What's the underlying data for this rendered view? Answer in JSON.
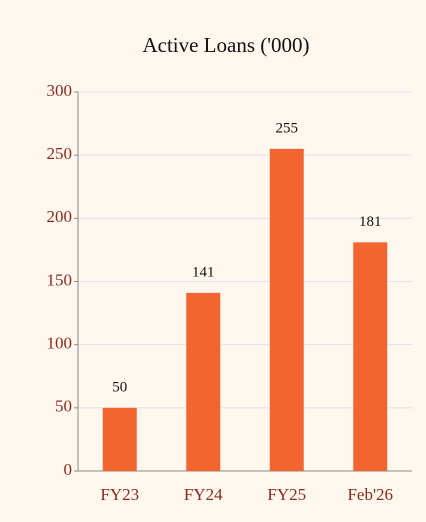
{
  "chart_data": {
    "type": "bar",
    "title": "Active Loans ('000)",
    "categories": [
      "FY23",
      "FY24",
      "FY25",
      "Feb'26"
    ],
    "values": [
      50,
      141,
      255,
      181
    ],
    "color": "#f26430",
    "ylim": [
      0,
      300
    ],
    "yticks": [
      0,
      50,
      100,
      150,
      200,
      250,
      300
    ],
    "grid": true
  }
}
